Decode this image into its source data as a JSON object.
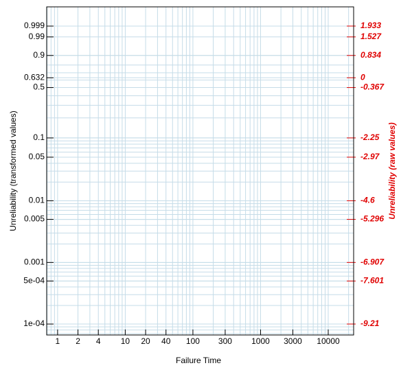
{
  "chart_data": {
    "type": "probability-plot",
    "x_label": "Failure Time",
    "y_label": "Unreliability (transformed values)",
    "y2_label": "Unreliability (raw values)",
    "xscale": "log",
    "yscale": "weibull",
    "grid": true,
    "y2_color": "#e00000",
    "xlim": [
      0.69,
      23750
    ],
    "xticks": [
      1,
      2,
      4,
      10,
      20,
      40,
      100,
      300,
      1000,
      3000,
      10000
    ],
    "ylim": [
      6.64e-05,
      0.9999993
    ],
    "yticks": [
      0.999,
      0.99,
      0.9,
      0.632,
      0.5,
      0.1,
      0.05,
      0.01,
      0.005,
      0.001,
      {
        "value": 0.0005,
        "label": "5e-04"
      },
      {
        "value": 0.0001,
        "label": "1e-04"
      }
    ],
    "y2lim": [
      -9.62,
      2.651
    ],
    "y2ticks": [
      1.933,
      1.527,
      0.834,
      0,
      -0.367,
      -2.25,
      -2.97,
      -4.6,
      -5.296,
      -6.907,
      -7.601,
      -9.21
    ]
  }
}
